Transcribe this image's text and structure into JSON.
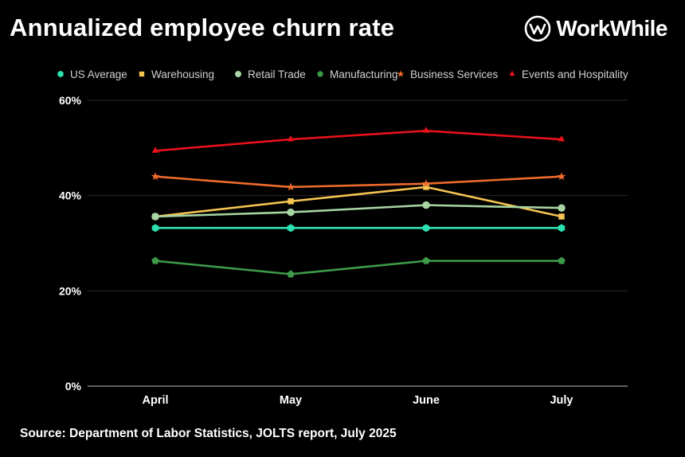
{
  "header": {
    "title": "Annualized employee churn rate",
    "logo_text": "WorkWhile"
  },
  "footer": {
    "source": "Source: Department of Labor Statistics, JOLTS report, July 2025"
  },
  "chart_data": {
    "type": "line",
    "title": "Annualized employee churn rate",
    "xlabel": "",
    "ylabel": "",
    "categories": [
      "April",
      "May",
      "June",
      "July"
    ],
    "ylim": [
      0,
      60
    ],
    "yticks": [
      0,
      20,
      40,
      60
    ],
    "ytick_labels": [
      "0%",
      "20%",
      "40%",
      "60%"
    ],
    "grid": true,
    "legend_position": "top",
    "series": [
      {
        "name": "US Average",
        "color": "#2de0b0",
        "marker": "hexagon",
        "values": [
          33.2,
          33.2,
          33.2,
          33.2
        ]
      },
      {
        "name": "Warehousing",
        "color": "#f5c451",
        "marker": "square",
        "values": [
          35.6,
          38.8,
          41.8,
          35.6
        ]
      },
      {
        "name": "Retail Trade",
        "color": "#a8d5a2",
        "marker": "circle",
        "values": [
          35.6,
          36.5,
          38.0,
          37.4
        ]
      },
      {
        "name": "Manufacturing",
        "color": "#3d9a48",
        "marker": "pentagon",
        "values": [
          26.3,
          23.5,
          26.3,
          26.3
        ]
      },
      {
        "name": "Business Services",
        "color": "#ee6c2b",
        "marker": "star",
        "values": [
          44.0,
          41.8,
          42.5,
          44.0
        ]
      },
      {
        "name": "Events and Hospitality",
        "color": "#e8111a",
        "marker": "triangle",
        "values": [
          49.4,
          51.8,
          53.6,
          51.8
        ]
      }
    ]
  }
}
